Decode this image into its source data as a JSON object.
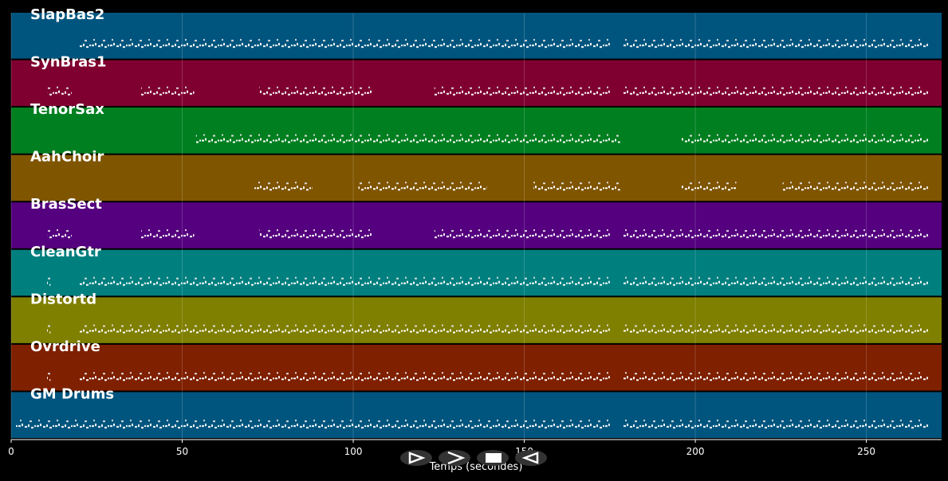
{
  "chart_data": {
    "type": "piano-roll",
    "xlabel": "Temps (secondes)",
    "xlim": [
      0,
      272
    ],
    "xticks": [
      0,
      50,
      100,
      150,
      200,
      250
    ],
    "grid": true,
    "series": [
      {
        "name": "SlapBas2",
        "color": "#00557f",
        "segments": [
          [
            19.6,
            175
          ],
          [
            179,
            268
          ]
        ]
      },
      {
        "name": "SynBras1",
        "color": "#7f0030",
        "segments": [
          [
            10.7,
            17.7
          ],
          [
            38,
            53.5
          ],
          [
            72.6,
            105.7
          ],
          [
            123.7,
            175
          ],
          [
            179,
            268
          ]
        ]
      },
      {
        "name": "TenorSax",
        "color": "#007f20",
        "segments": [
          [
            54,
            178
          ],
          [
            196,
            268
          ]
        ]
      },
      {
        "name": "AahChoir",
        "color": "#7f5500",
        "segments": [
          [
            71,
            88
          ],
          [
            101.5,
            139
          ],
          [
            152.7,
            178
          ],
          [
            196,
            212
          ],
          [
            225.5,
            268
          ]
        ]
      },
      {
        "name": "BrasSect",
        "color": "#55007f",
        "segments": [
          [
            10.7,
            17.7
          ],
          [
            38,
            53.5
          ],
          [
            72.6,
            105.7
          ],
          [
            123.7,
            175
          ],
          [
            179,
            268
          ]
        ]
      },
      {
        "name": "CleanGtr",
        "color": "#007f7f",
        "segments": [
          [
            10.5,
            11.5
          ],
          [
            19.6,
            175
          ],
          [
            179,
            268
          ]
        ]
      },
      {
        "name": "Distortd",
        "color": "#7f7f00",
        "segments": [
          [
            10.5,
            11.5
          ],
          [
            19.6,
            175
          ],
          [
            179,
            268
          ]
        ]
      },
      {
        "name": "Ovrdrive",
        "color": "#7f2000",
        "segments": [
          [
            10.5,
            11.5
          ],
          [
            19.6,
            175
          ],
          [
            179,
            268
          ]
        ]
      },
      {
        "name": "GM Drums",
        "color": "#00557f",
        "segments": [
          [
            1.4,
            175
          ],
          [
            179,
            268
          ]
        ]
      }
    ]
  }
}
